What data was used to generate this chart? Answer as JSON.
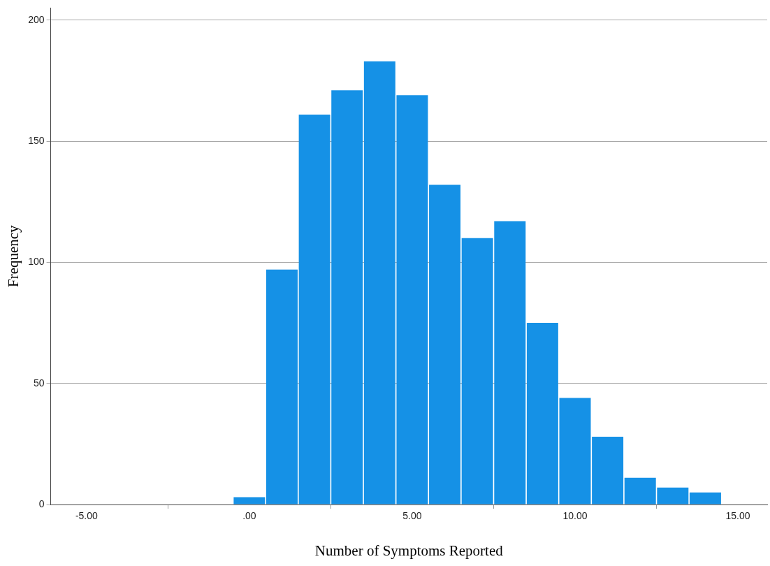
{
  "chart_data": {
    "type": "histogram",
    "xlabel": "Number of Symptoms Reported",
    "ylabel": "Frequency",
    "bins": [
      -0.5,
      0.5,
      1.5,
      2.5,
      3.5,
      4.5,
      5.5,
      6.5,
      7.5,
      8.5,
      9.5,
      10.5,
      11.5,
      12.5,
      13.5,
      14.5
    ],
    "values": [
      3,
      97,
      161,
      171,
      183,
      169,
      132,
      110,
      117,
      75,
      44,
      28,
      11,
      7,
      5
    ],
    "color": "#1591e6",
    "xlim": [
      -6.1,
      15.9
    ],
    "xticks": [
      {
        "value": -5,
        "label": "-5.00"
      },
      {
        "value": 0,
        "label": ".00"
      },
      {
        "value": 5,
        "label": "5.00"
      },
      {
        "value": 10,
        "label": "10.00"
      },
      {
        "value": 15,
        "label": "15.00"
      }
    ],
    "ylim": [
      0,
      205
    ],
    "yticks": [
      0,
      50,
      100,
      150,
      200
    ],
    "grid": "y",
    "legend": false
  }
}
